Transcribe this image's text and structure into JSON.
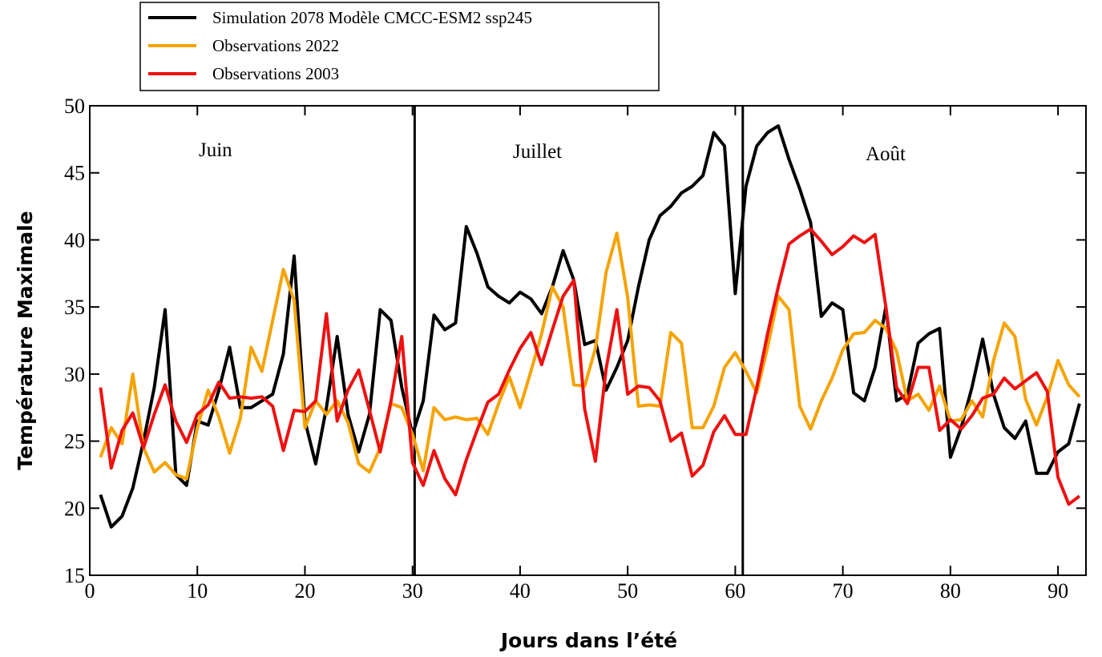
{
  "chart_data": {
    "type": "line",
    "xlabel": "Jours dans l’été",
    "ylabel": "Température Maximale",
    "annotations": [
      "Juin",
      "Juillet",
      "Août"
    ],
    "vlines": [
      30.2,
      60.7
    ],
    "xlim": [
      0,
      92.6
    ],
    "xticks": [
      0,
      10,
      20,
      30,
      40,
      50,
      60,
      70,
      80,
      90
    ],
    "ylim": [
      15,
      50
    ],
    "yticks": [
      15,
      20,
      25,
      30,
      35,
      40,
      45,
      50
    ],
    "x": [
      1,
      2,
      3,
      4,
      5,
      6,
      7,
      8,
      9,
      10,
      11,
      12,
      13,
      14,
      15,
      16,
      17,
      18,
      19,
      20,
      21,
      22,
      23,
      24,
      25,
      26,
      27,
      28,
      29,
      30,
      31,
      32,
      33,
      34,
      35,
      36,
      37,
      38,
      39,
      40,
      41,
      42,
      43,
      44,
      45,
      46,
      47,
      48,
      49,
      50,
      51,
      52,
      53,
      54,
      55,
      56,
      57,
      58,
      59,
      60,
      61,
      62,
      63,
      64,
      65,
      66,
      67,
      68,
      69,
      70,
      71,
      72,
      73,
      74,
      75,
      76,
      77,
      78,
      79,
      80,
      81,
      82,
      83,
      84,
      85,
      86,
      87,
      88,
      89,
      90,
      91,
      92
    ],
    "legend": "top-left",
    "series": [
      {
        "name": "Simulation 2078 Modèle CMCC-ESM2 ssp245",
        "color": "#000000",
        "values": [
          21,
          18.6,
          19.4,
          21.5,
          25,
          29,
          34.8,
          22.5,
          21.7,
          26.5,
          26.2,
          28.8,
          32,
          27.5,
          27.5,
          28,
          28.5,
          31.5,
          38.8,
          26.5,
          23.3,
          27.5,
          32.8,
          27,
          24.2,
          27,
          34.8,
          34,
          29,
          25.5,
          28,
          34.4,
          33.3,
          33.8,
          41,
          39,
          36.5,
          35.8,
          35.3,
          36.1,
          35.6,
          34.5,
          36.5,
          39.2,
          37,
          32.2,
          32.5,
          28.8,
          30.5,
          32.5,
          36.5,
          40,
          41.8,
          42.5,
          43.5,
          44,
          44.8,
          48,
          47,
          36,
          44,
          47,
          48,
          48.5,
          46,
          43.8,
          41.3,
          34.3,
          35.3,
          34.8,
          28.6,
          28,
          30.5,
          35,
          28,
          28.5,
          32.3,
          33,
          33.4,
          23.8,
          26,
          29,
          32.6,
          28.5,
          26,
          25.2,
          26.5,
          22.6,
          22.6,
          24.2,
          24.8,
          27.8
        ]
      },
      {
        "name": "Observations 2022",
        "color": "#f5a300",
        "values": [
          23.8,
          26,
          24.8,
          30,
          24.5,
          22.7,
          23.4,
          22.5,
          22.2,
          26,
          28.8,
          26.8,
          24.1,
          26.7,
          32,
          30.2,
          34,
          37.8,
          35.5,
          26,
          28,
          27,
          28,
          26.4,
          23.3,
          22.7,
          24.5,
          27.8,
          27.5,
          25.5,
          22.8,
          27.5,
          26.6,
          26.8,
          26.6,
          26.7,
          25.5,
          27.8,
          29.8,
          27.5,
          30.2,
          33,
          36.5,
          35,
          29.2,
          29.1,
          31.9,
          37.6,
          40.5,
          35.7,
          27.6,
          27.7,
          27.6,
          33.1,
          32.3,
          26,
          26,
          27.6,
          30.5,
          31.6,
          30.2,
          28.6,
          32,
          35.8,
          34.8,
          27.6,
          25.9,
          28,
          29.7,
          31.8,
          33,
          33.1,
          34,
          33.4,
          31.7,
          28,
          28.5,
          27.3,
          29.1,
          26.5,
          26.6,
          28,
          26.8,
          31,
          33.8,
          32.8,
          28.1,
          26.2,
          28.3,
          31,
          29.2,
          28.3
        ]
      },
      {
        "name": "Observations 2003",
        "color": "#ee1111",
        "values": [
          29,
          23,
          25.8,
          27.1,
          24.5,
          27,
          29.2,
          26.5,
          24.9,
          27,
          27.7,
          29.4,
          28.2,
          28.3,
          28.2,
          28.3,
          27.6,
          24.3,
          27.3,
          27.2,
          28,
          34.5,
          26.5,
          28.8,
          30.3,
          27.3,
          24.2,
          28,
          32.8,
          23.4,
          21.7,
          24.3,
          22.2,
          21,
          23.6,
          25.8,
          27.9,
          28.5,
          30.3,
          31.9,
          33.1,
          30.7,
          33.3,
          35.8,
          37,
          27.4,
          23.5,
          30.4,
          34.8,
          28.5,
          29.1,
          29,
          28,
          25,
          25.6,
          22.4,
          23.2,
          25.7,
          26.9,
          25.5,
          25.5,
          29,
          33,
          36.5,
          39.7,
          40.3,
          40.8,
          39.9,
          38.9,
          39.5,
          40.3,
          39.8,
          40.4,
          35,
          29,
          27.8,
          30.5,
          30.5,
          25.8,
          26.6,
          25.9,
          26.9,
          28.2,
          28.5,
          29.7,
          28.9,
          29.5,
          30.1,
          28.7,
          22.3,
          20.3,
          20.9
        ]
      }
    ]
  }
}
